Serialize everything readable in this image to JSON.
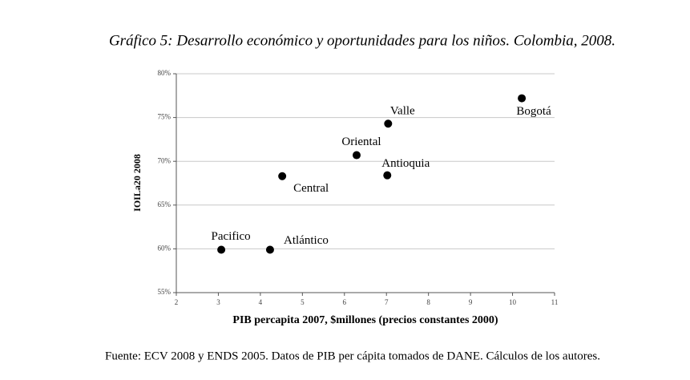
{
  "chart_data": {
    "type": "scatter",
    "title": "Gráfico 5: Desarrollo económico y oportunidades para los niños. Colombia, 2008.",
    "x_label": "PIB percapita 2007, $millones (precios constantes 2000)",
    "y_label": "IOILa20 2008",
    "source": "Fuente: ECV 2008 y ENDS 2005. Datos de PIB per cápita tomados de DANE. Cálculos de los autores.",
    "labels": [
      "Pacifico",
      "Atlántico",
      "Central",
      "Oriental",
      "Antioquia",
      "Valle",
      "Bogotá"
    ],
    "x": [
      3.07,
      4.23,
      4.52,
      6.29,
      7.02,
      7.04,
      10.22
    ],
    "values": [
      59.9,
      59.9,
      68.3,
      70.7,
      68.4,
      74.3,
      77.2
    ],
    "color": "#000000",
    "xlim": [
      2,
      11
    ],
    "xticks": [
      2,
      3,
      4,
      5,
      6,
      7,
      8,
      9,
      10,
      11
    ],
    "ylim": [
      55,
      80
    ],
    "yticks": [
      {
        "value": 55,
        "label": "55%"
      },
      {
        "value": 60,
        "label": "60%"
      },
      {
        "value": 65,
        "label": "65%"
      },
      {
        "value": 70,
        "label": "70%"
      },
      {
        "value": 75,
        "label": "75%"
      },
      {
        "value": 80,
        "label": "80%"
      }
    ],
    "grid": true
  }
}
